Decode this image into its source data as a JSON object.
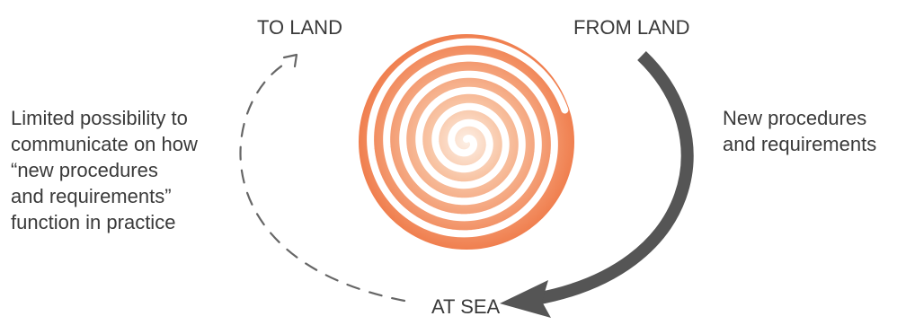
{
  "nodes": {
    "to_land": "TO LAND",
    "from_land": "FROM LAND",
    "at_sea": "AT SEA"
  },
  "left_note": {
    "lines": [
      "Limited possibility to",
      "communicate on how",
      "“new procedures",
      "and requirements”",
      "function in practice"
    ]
  },
  "right_note": {
    "lines": [
      "New procedures",
      "and requirements"
    ]
  },
  "colors": {
    "text": "#3a3a3a",
    "solid_arrow": "#555555",
    "dashed_arrow": "#666666",
    "spiral_outer": "#f08a5d",
    "spiral_inner": "#fde7d9"
  }
}
